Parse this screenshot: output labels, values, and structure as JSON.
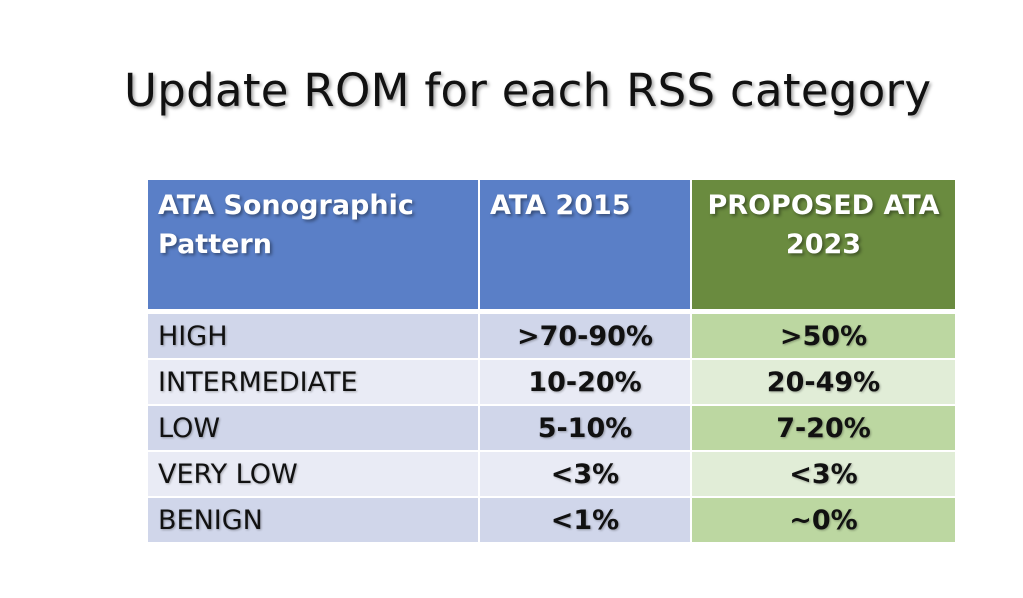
{
  "title": "Update ROM for each RSS category",
  "colors": {
    "header_blue": "#5a7fc7",
    "header_green": "#6a8b3f"
  },
  "table": {
    "headers": [
      "ATA Sonographic Pattern",
      "ATA 2015",
      "PROPOSED ATA 2023"
    ],
    "rows": [
      [
        "HIGH",
        ">70-90%",
        ">50%"
      ],
      [
        "INTERMEDIATE",
        "10-20%",
        "20-49%"
      ],
      [
        "LOW",
        "5-10%",
        "7-20%"
      ],
      [
        "VERY LOW",
        "<3%",
        "<3%"
      ],
      [
        "BENIGN",
        "<1%",
        "~0%"
      ]
    ]
  }
}
